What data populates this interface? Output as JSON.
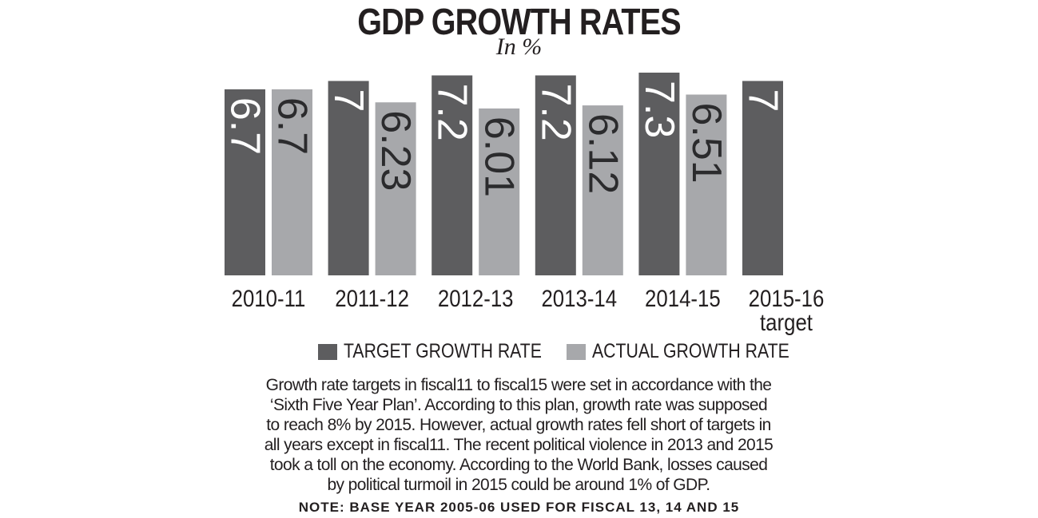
{
  "chart_data": {
    "type": "bar",
    "title": "GDP GROWTH RATES",
    "subtitle": "In %",
    "categories": [
      "2010-11",
      "2011-12",
      "2012-13",
      "2013-14",
      "2014-15",
      "2015-16 target"
    ],
    "series": [
      {
        "name": "TARGET GROWTH RATE",
        "values": [
          6.7,
          7,
          7.2,
          7.2,
          7.3,
          7
        ],
        "labels": [
          "6.7",
          "7",
          "7.2",
          "7.2",
          "7.3",
          "7"
        ],
        "color": "#5d5d5f"
      },
      {
        "name": "ACTUAL GROWTH RATE",
        "values": [
          6.7,
          6.23,
          6.01,
          6.12,
          6.51,
          null
        ],
        "labels": [
          "6.7",
          "6.23",
          "6.01",
          "6.12",
          "6.51",
          ""
        ],
        "color": "#a7a8ab"
      }
    ],
    "xlabel": "",
    "ylabel": "",
    "ylim": [
      0,
      7.3
    ],
    "grid": false,
    "legend": "bottom"
  },
  "description": "Growth rate targets in fiscal11 to fiscal15 were set in accordance with the ‘Sixth Five Year Plan’. According to this plan, growth rate was supposed to reach 8% by 2015. However, actual growth rates fell short of targets in all years except in fiscal11. The recent political violence in 2013 and 2015 took a toll on the economy. According to the World Bank, losses caused by political turmoil in 2015 could be around 1% of GDP.",
  "note": "NOTE: BASE YEAR 2005-06 USED FOR FISCAL 13, 14 AND 15"
}
